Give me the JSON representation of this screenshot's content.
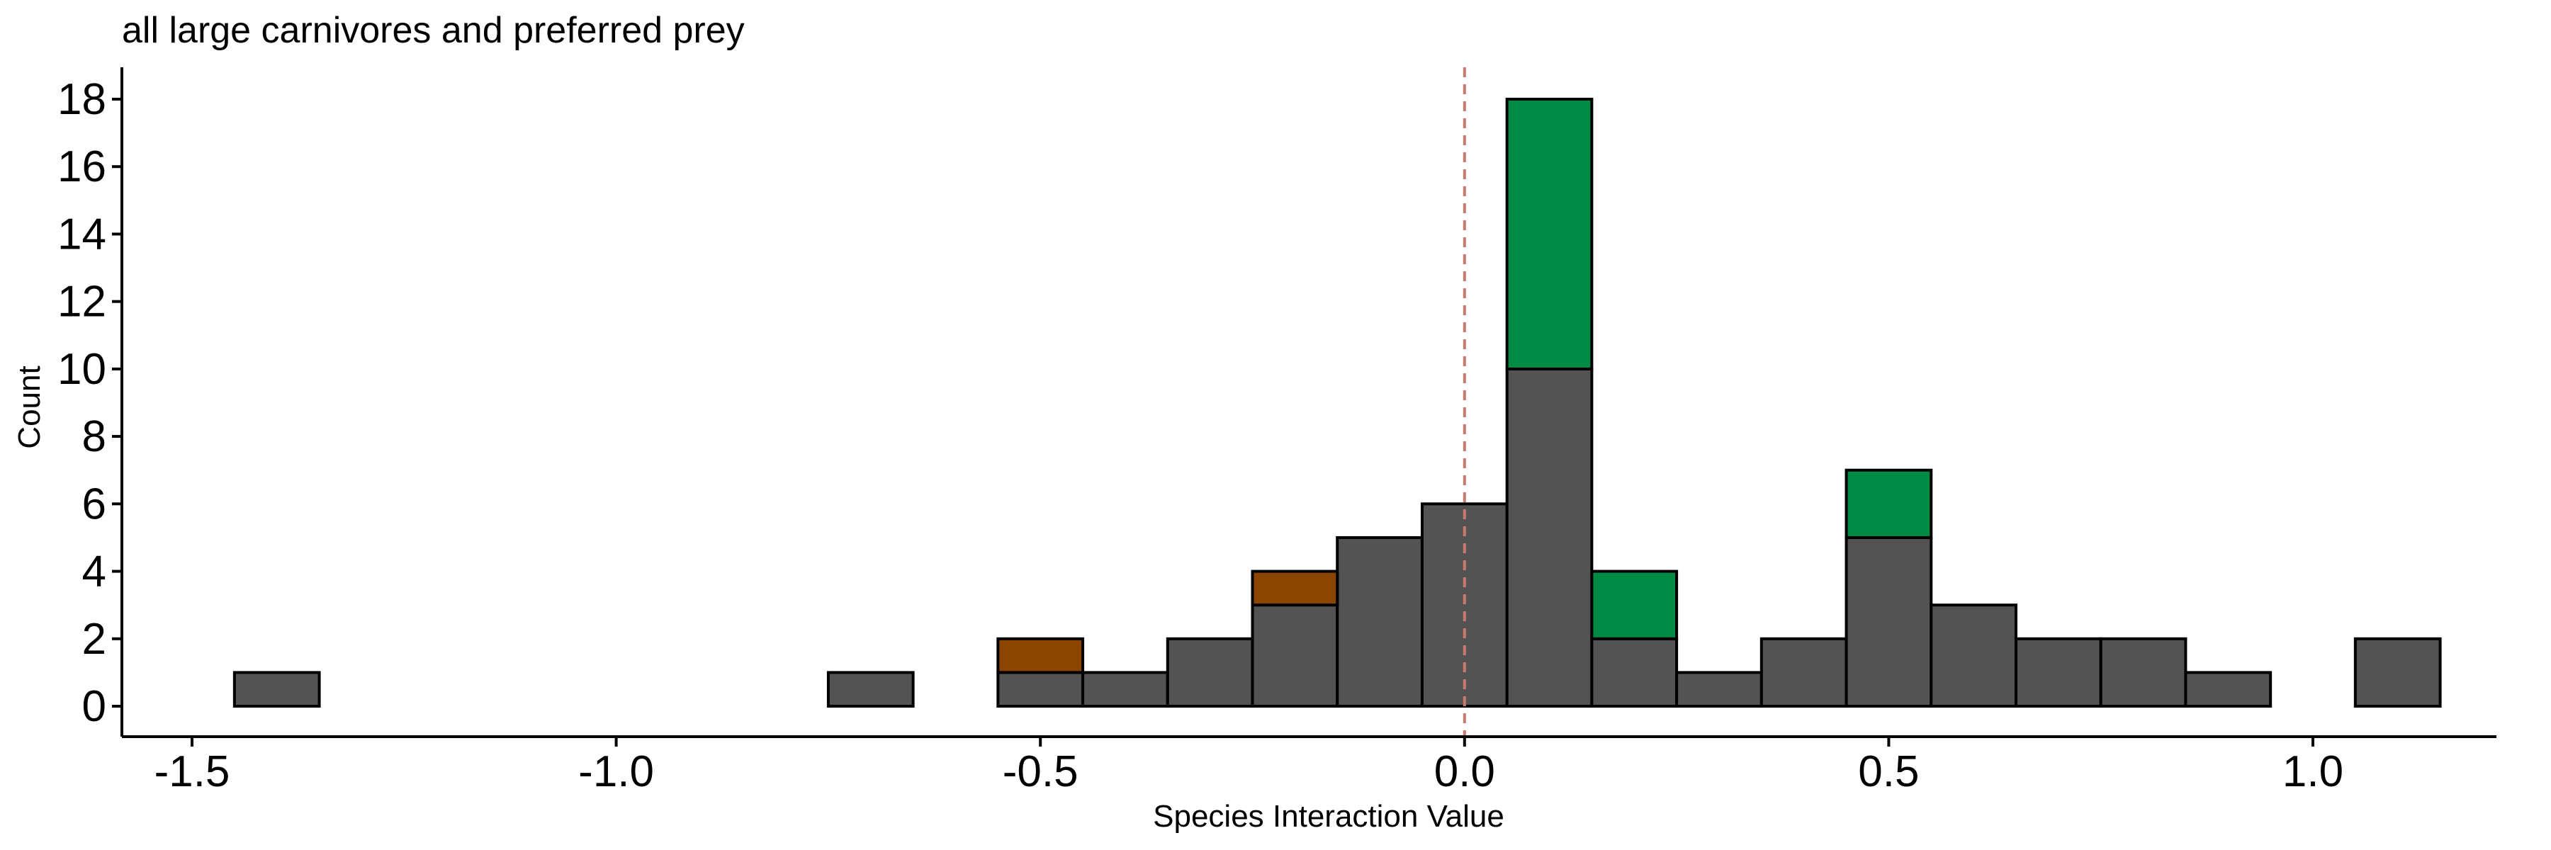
{
  "chart_data": {
    "type": "bar",
    "title": "all large carnivores and preferred prey",
    "xlabel": "Species Interaction Value",
    "ylabel": "Count",
    "xlim": [
      -1.5,
      1.25
    ],
    "ylim": [
      0,
      18
    ],
    "x_ticks": [
      -1.5,
      -1.0,
      -0.5,
      0.0,
      0.5,
      1.0
    ],
    "x_tick_labels": [
      "-1.5",
      "-1.0",
      "-0.5",
      "0.0",
      "0.5",
      "1.0"
    ],
    "y_ticks": [
      0,
      2,
      4,
      6,
      8,
      10,
      12,
      14,
      16,
      18
    ],
    "y_tick_labels": [
      "0",
      "2",
      "4",
      "6",
      "8",
      "10",
      "12",
      "14",
      "16",
      "18"
    ],
    "bin_width": 0.1,
    "bin_centers": [
      -1.4,
      -1.3,
      -1.2,
      -1.1,
      -1.0,
      -0.9,
      -0.8,
      -0.7,
      -0.6,
      -0.5,
      -0.4,
      -0.3,
      -0.2,
      -0.1,
      0.0,
      0.1,
      0.2,
      0.3,
      0.4,
      0.5,
      0.6,
      0.7,
      0.8,
      0.9,
      1.0,
      1.1
    ],
    "stacked": true,
    "series": [
      {
        "color": "#535353",
        "values": [
          1,
          0,
          0,
          0,
          0,
          0,
          0,
          1,
          0,
          1,
          1,
          2,
          3,
          5,
          6,
          10,
          2,
          1,
          2,
          5,
          3,
          2,
          2,
          1,
          0,
          2
        ]
      },
      {
        "color": "#8B4500",
        "values": [
          0,
          0,
          0,
          0,
          0,
          0,
          0,
          0,
          0,
          1,
          0,
          0,
          1,
          0,
          0,
          0,
          0,
          0,
          0,
          0,
          0,
          0,
          0,
          0,
          0,
          0
        ]
      },
      {
        "color": "#008B45",
        "values": [
          0,
          0,
          0,
          0,
          0,
          0,
          0,
          0,
          0,
          0,
          0,
          0,
          0,
          0,
          0,
          8,
          2,
          0,
          0,
          2,
          0,
          0,
          0,
          0,
          0,
          0
        ]
      }
    ],
    "reference_line": {
      "x": 0,
      "style": "dashed",
      "color": "#C97A6E"
    },
    "grid": false,
    "legend": "none"
  }
}
